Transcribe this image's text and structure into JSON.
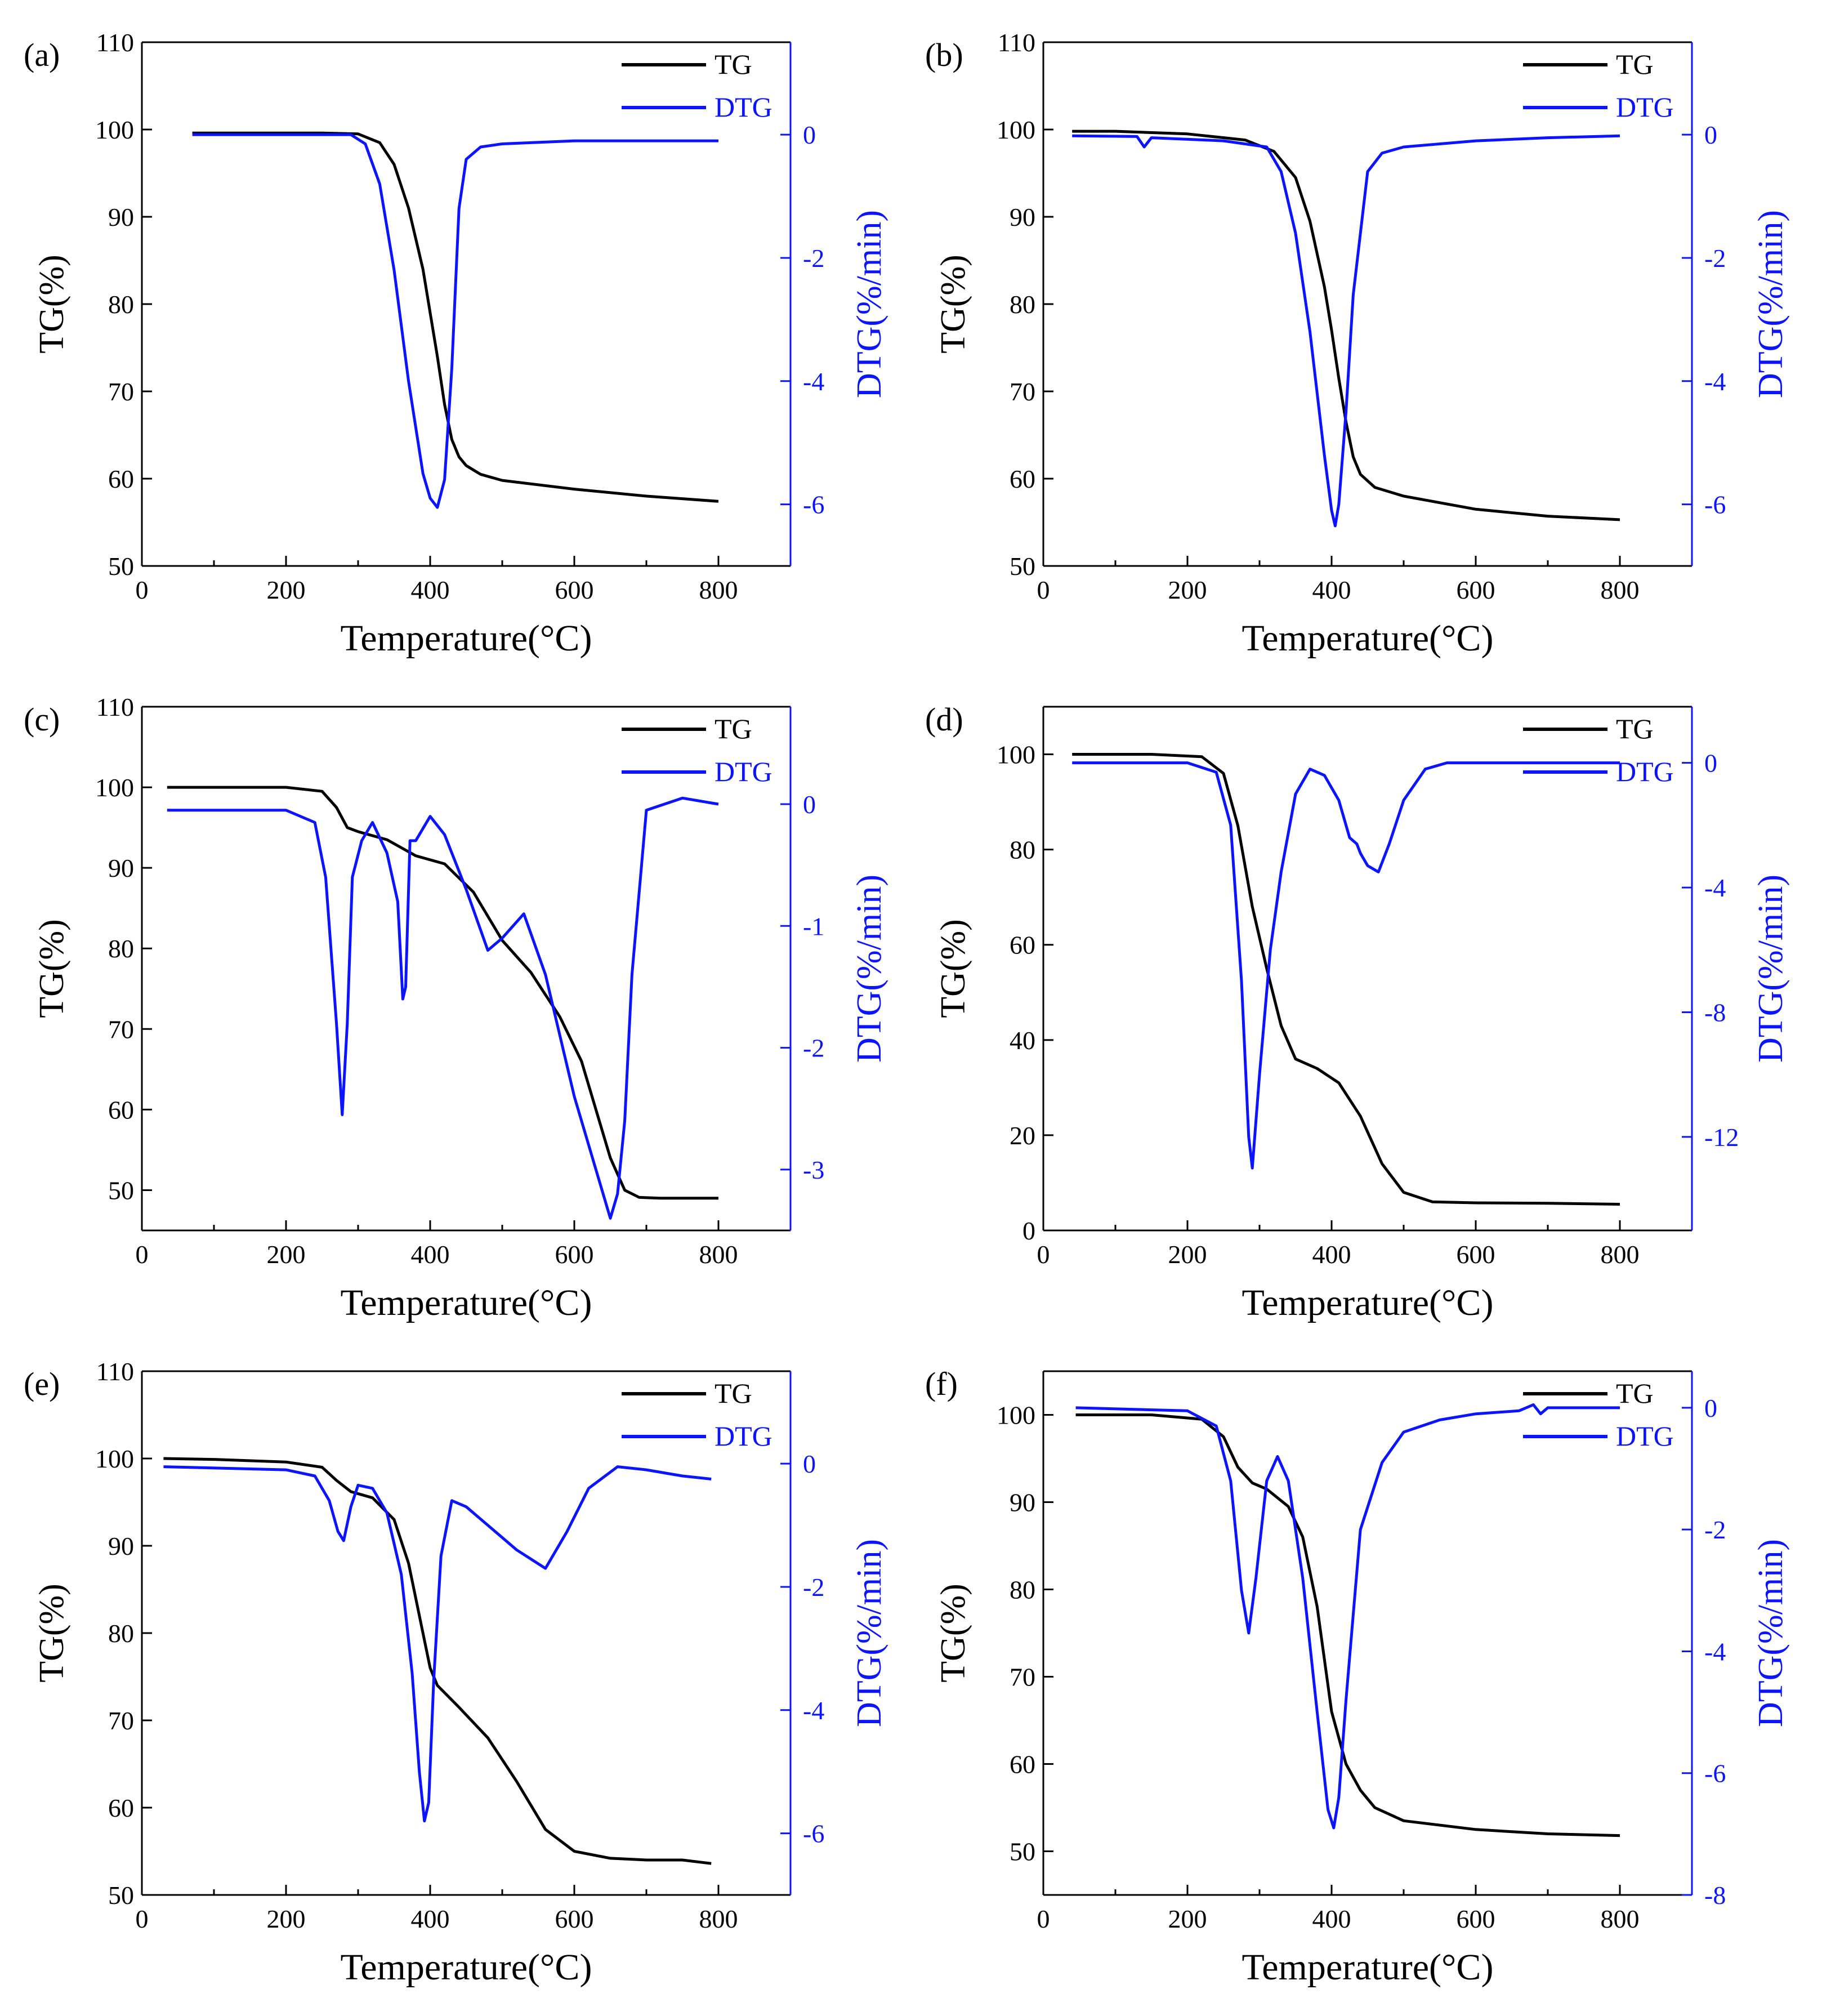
{
  "figure": {
    "description_labels": [
      "(a)",
      "(b)",
      "(c)",
      "(d)",
      "(e)",
      "(f)"
    ],
    "colors": {
      "tg": "#000000",
      "dtg": "#0a14ff",
      "axis": "#000000",
      "dtg_axis": "#0a14ff"
    }
  },
  "chart_data": [
    {
      "type": "line",
      "panel_label": "(a)",
      "xlabel": "Temperature(°C)",
      "ylabel": "TG(%)",
      "y2label": "DTG(%/min)",
      "xlim": [
        0,
        900
      ],
      "ylim": [
        50,
        110
      ],
      "y2lim": [
        -7,
        1.5
      ],
      "xticks": [
        0,
        200,
        400,
        600,
        800
      ],
      "yticks": [
        50,
        60,
        70,
        80,
        90,
        100,
        110
      ],
      "y2ticks": [
        0,
        -2,
        -4,
        -6
      ],
      "legend": [
        "TG",
        "DTG"
      ],
      "series": [
        {
          "name": "TG",
          "axis": "left",
          "x": [
            70,
            150,
            250,
            300,
            330,
            350,
            370,
            390,
            400,
            410,
            420,
            430,
            440,
            450,
            470,
            500,
            600,
            700,
            800
          ],
          "y": [
            99.6,
            99.6,
            99.6,
            99.5,
            98.5,
            96.0,
            91.0,
            84.0,
            79.0,
            74.0,
            68.5,
            64.5,
            62.5,
            61.5,
            60.5,
            59.8,
            58.8,
            58.0,
            57.4
          ]
        },
        {
          "name": "DTG",
          "axis": "right",
          "x": [
            70,
            200,
            290,
            310,
            330,
            350,
            370,
            390,
            400,
            410,
            420,
            430,
            440,
            450,
            470,
            500,
            600,
            700,
            800
          ],
          "y": [
            0,
            0,
            0,
            -0.15,
            -0.8,
            -2.2,
            -4.0,
            -5.5,
            -5.9,
            -6.05,
            -5.6,
            -3.8,
            -1.2,
            -0.4,
            -0.2,
            -0.15,
            -0.1,
            -0.1,
            -0.1
          ]
        }
      ]
    },
    {
      "type": "line",
      "panel_label": "(b)",
      "xlabel": "Temperature(°C)",
      "ylabel": "TG(%)",
      "y2label": "DTG(%/min)",
      "xlim": [
        0,
        900
      ],
      "ylim": [
        50,
        110
      ],
      "y2lim": [
        -7,
        1.5
      ],
      "xticks": [
        0,
        200,
        400,
        600,
        800
      ],
      "yticks": [
        50,
        60,
        70,
        80,
        90,
        100,
        110
      ],
      "y2ticks": [
        0,
        -2,
        -4,
        -6
      ],
      "legend": [
        "TG",
        "DTG"
      ],
      "series": [
        {
          "name": "TG",
          "axis": "left",
          "x": [
            40,
            100,
            200,
            280,
            320,
            350,
            370,
            390,
            400,
            410,
            420,
            430,
            440,
            460,
            500,
            600,
            700,
            800
          ],
          "y": [
            99.8,
            99.8,
            99.5,
            98.8,
            97.5,
            94.5,
            89.5,
            82.0,
            77.0,
            71.5,
            66.5,
            62.5,
            60.5,
            59.0,
            58.0,
            56.5,
            55.7,
            55.3
          ]
        },
        {
          "name": "DTG",
          "axis": "right",
          "x": [
            40,
            130,
            140,
            150,
            250,
            310,
            330,
            350,
            370,
            390,
            400,
            405,
            410,
            420,
            430,
            450,
            470,
            500,
            600,
            700,
            800
          ],
          "y": [
            -0.02,
            -0.03,
            -0.2,
            -0.05,
            -0.1,
            -0.2,
            -0.6,
            -1.6,
            -3.2,
            -5.2,
            -6.1,
            -6.35,
            -6.0,
            -4.5,
            -2.6,
            -0.6,
            -0.3,
            -0.2,
            -0.1,
            -0.05,
            -0.02
          ]
        }
      ]
    },
    {
      "type": "line",
      "panel_label": "(c)",
      "xlabel": "Temperature(°C)",
      "ylabel": "TG(%)",
      "y2label": "DTG(%/min)",
      "xlim": [
        0,
        900
      ],
      "ylim": [
        45,
        110
      ],
      "y2lim": [
        -3.5,
        0.8
      ],
      "xticks": [
        0,
        200,
        400,
        600,
        800
      ],
      "yticks": [
        50,
        60,
        70,
        80,
        90,
        100,
        110
      ],
      "y2ticks": [
        0,
        -1,
        -2,
        -3
      ],
      "legend": [
        "TG",
        "DTG"
      ],
      "series": [
        {
          "name": "TG",
          "axis": "left",
          "x": [
            35,
            100,
            200,
            250,
            270,
            285,
            300,
            340,
            380,
            420,
            460,
            500,
            540,
            580,
            610,
            630,
            650,
            670,
            690,
            720,
            800
          ],
          "y": [
            100,
            100,
            100,
            99.5,
            97.5,
            95.0,
            94.5,
            93.5,
            91.5,
            90.5,
            87.0,
            81.0,
            77.0,
            71.5,
            66.0,
            60.0,
            54.0,
            50.0,
            49.1,
            49.0,
            49.0
          ]
        },
        {
          "name": "DTG",
          "axis": "right",
          "x": [
            35,
            200,
            240,
            255,
            270,
            278,
            285,
            292,
            305,
            320,
            340,
            355,
            362,
            366,
            372,
            380,
            400,
            420,
            450,
            480,
            500,
            530,
            560,
            600,
            630,
            650,
            660,
            670,
            680,
            700,
            750,
            800
          ],
          "y": [
            -0.05,
            -0.05,
            -0.15,
            -0.6,
            -1.8,
            -2.55,
            -1.8,
            -0.6,
            -0.3,
            -0.15,
            -0.4,
            -0.8,
            -1.6,
            -1.5,
            -0.3,
            -0.3,
            -0.1,
            -0.25,
            -0.7,
            -1.2,
            -1.1,
            -0.9,
            -1.4,
            -2.4,
            -3.0,
            -3.4,
            -3.2,
            -2.6,
            -1.4,
            -0.05,
            0.05,
            0.0
          ]
        }
      ]
    },
    {
      "type": "line",
      "panel_label": "(d)",
      "xlabel": "Temperature(°C)",
      "ylabel": "TG(%)",
      "y2label": "DTG(%/min)",
      "xlim": [
        0,
        900
      ],
      "ylim": [
        0,
        110
      ],
      "y2lim": [
        -15,
        1.8
      ],
      "xticks": [
        0,
        200,
        400,
        600,
        800
      ],
      "yticks": [
        0,
        20,
        40,
        60,
        80,
        100
      ],
      "y2ticks": [
        0,
        -4,
        -8,
        -12
      ],
      "legend": [
        "TG",
        "DTG"
      ],
      "series": [
        {
          "name": "TG",
          "axis": "left",
          "x": [
            40,
            150,
            220,
            250,
            270,
            290,
            310,
            330,
            350,
            380,
            410,
            440,
            470,
            500,
            540,
            600,
            700,
            800
          ],
          "y": [
            100,
            100,
            99.5,
            96.0,
            85.0,
            68.0,
            55.0,
            43.0,
            36.0,
            34.0,
            31.0,
            24.0,
            14.0,
            8.0,
            6.0,
            5.8,
            5.7,
            5.5
          ]
        },
        {
          "name": "DTG",
          "axis": "right",
          "x": [
            40,
            200,
            240,
            260,
            275,
            285,
            290,
            300,
            315,
            330,
            350,
            370,
            390,
            410,
            425,
            435,
            440,
            450,
            465,
            480,
            500,
            530,
            560,
            600,
            700,
            800
          ],
          "y": [
            0,
            0,
            -0.3,
            -2.0,
            -7.0,
            -12.0,
            -13.0,
            -10.0,
            -6.0,
            -3.5,
            -1.0,
            -0.2,
            -0.4,
            -1.2,
            -2.4,
            -2.6,
            -2.9,
            -3.3,
            -3.5,
            -2.6,
            -1.2,
            -0.2,
            0,
            0,
            0,
            0
          ]
        }
      ]
    },
    {
      "type": "line",
      "panel_label": "(e)",
      "xlabel": "Temperature(°C)",
      "ylabel": "TG(%)",
      "y2label": "DTG(%/min)",
      "xlim": [
        0,
        900
      ],
      "ylim": [
        50,
        110
      ],
      "y2lim": [
        -7,
        1.5
      ],
      "xticks": [
        0,
        200,
        400,
        600,
        800
      ],
      "yticks": [
        50,
        60,
        70,
        80,
        90,
        100,
        110
      ],
      "y2ticks": [
        0,
        -2,
        -4,
        -6
      ],
      "legend": [
        "TG",
        "DTG"
      ],
      "series": [
        {
          "name": "TG",
          "axis": "left",
          "x": [
            30,
            100,
            200,
            250,
            270,
            290,
            320,
            350,
            370,
            390,
            400,
            410,
            440,
            480,
            520,
            560,
            600,
            650,
            700,
            750,
            790
          ],
          "y": [
            100,
            99.9,
            99.6,
            99.0,
            97.5,
            96.2,
            95.5,
            93.0,
            88.0,
            80.0,
            76.0,
            74.0,
            71.5,
            68.0,
            63.0,
            57.5,
            55.0,
            54.2,
            54.0,
            54.0,
            53.6
          ]
        },
        {
          "name": "DTG",
          "axis": "right",
          "x": [
            30,
            200,
            240,
            260,
            272,
            280,
            290,
            300,
            320,
            340,
            360,
            375,
            385,
            392,
            398,
            405,
            415,
            430,
            450,
            480,
            520,
            560,
            590,
            620,
            660,
            700,
            750,
            790
          ],
          "y": [
            -0.05,
            -0.1,
            -0.2,
            -0.6,
            -1.1,
            -1.25,
            -0.7,
            -0.35,
            -0.4,
            -0.8,
            -1.8,
            -3.4,
            -5.0,
            -5.8,
            -5.5,
            -3.5,
            -1.5,
            -0.6,
            -0.7,
            -1.0,
            -1.4,
            -1.7,
            -1.1,
            -0.4,
            -0.05,
            -0.1,
            -0.2,
            -0.25
          ]
        }
      ]
    },
    {
      "type": "line",
      "panel_label": "(f)",
      "xlabel": "Temperature(°C)",
      "ylabel": "TG(%)",
      "y2label": "DTG(%/min)",
      "xlim": [
        0,
        900
      ],
      "ylim": [
        45,
        105
      ],
      "y2lim": [
        -8,
        0.6
      ],
      "xticks": [
        0,
        200,
        400,
        600,
        800
      ],
      "yticks": [
        50,
        60,
        70,
        80,
        90,
        100
      ],
      "y2ticks": [
        0,
        -2,
        -4,
        -6,
        -8
      ],
      "legend": [
        "TG",
        "DTG"
      ],
      "series": [
        {
          "name": "TG",
          "axis": "left",
          "x": [
            45,
            150,
            220,
            250,
            270,
            290,
            310,
            340,
            360,
            380,
            400,
            420,
            440,
            460,
            500,
            600,
            700,
            800
          ],
          "y": [
            100,
            100,
            99.5,
            97.5,
            94.0,
            92.2,
            91.5,
            89.5,
            86.0,
            78.0,
            66.0,
            60.0,
            57.0,
            55.0,
            53.5,
            52.5,
            52.0,
            51.8
          ]
        },
        {
          "name": "DTG",
          "axis": "right",
          "x": [
            45,
            200,
            240,
            260,
            275,
            285,
            295,
            310,
            325,
            340,
            360,
            380,
            395,
            403,
            410,
            420,
            440,
            470,
            500,
            550,
            600,
            660,
            680,
            690,
            700,
            800
          ],
          "y": [
            0,
            -0.05,
            -0.3,
            -1.2,
            -3.0,
            -3.7,
            -2.8,
            -1.2,
            -0.8,
            -1.2,
            -2.8,
            -5.0,
            -6.6,
            -6.9,
            -6.4,
            -4.8,
            -2.0,
            -0.9,
            -0.4,
            -0.2,
            -0.1,
            -0.05,
            0.05,
            -0.1,
            0.0,
            0.0
          ]
        }
      ]
    }
  ]
}
